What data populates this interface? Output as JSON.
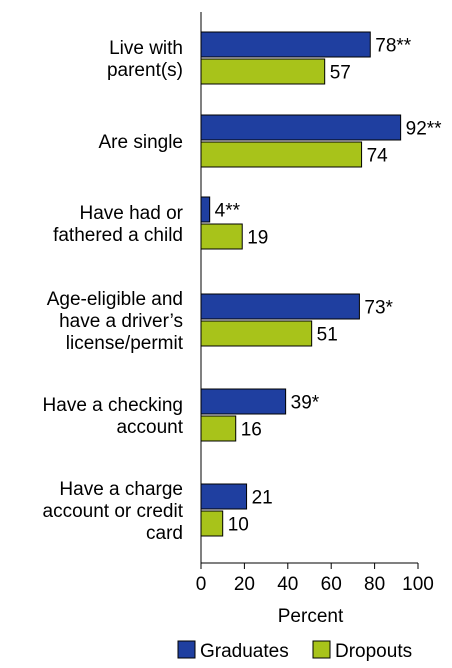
{
  "chart_data": {
    "type": "bar",
    "orientation": "horizontal",
    "categories": [
      [
        "Live with",
        "parent(s)"
      ],
      [
        "Are single"
      ],
      [
        "Have had or",
        "fathered a child"
      ],
      [
        "Age-eligible and",
        "have a driver’s",
        "license/permit"
      ],
      [
        "Have a checking",
        "account"
      ],
      [
        "Have a charge",
        "account or credit",
        "card"
      ]
    ],
    "series": [
      {
        "name": "Graduates",
        "color": "#1f3fa0",
        "values": [
          78,
          92,
          4,
          73,
          39,
          21
        ],
        "labels": [
          "78**",
          "92**",
          "4**",
          "73*",
          "39*",
          "21"
        ]
      },
      {
        "name": "Dropouts",
        "color": "#a8c31a",
        "values": [
          57,
          74,
          19,
          51,
          16,
          10
        ],
        "labels": [
          "57",
          "74",
          "19",
          "51",
          "16",
          "10"
        ]
      }
    ],
    "xlabel": "Percent",
    "xlim": [
      0,
      100
    ],
    "xticks": [
      0,
      20,
      40,
      60,
      80,
      100
    ],
    "grid": false,
    "legend_position": "bottom"
  }
}
